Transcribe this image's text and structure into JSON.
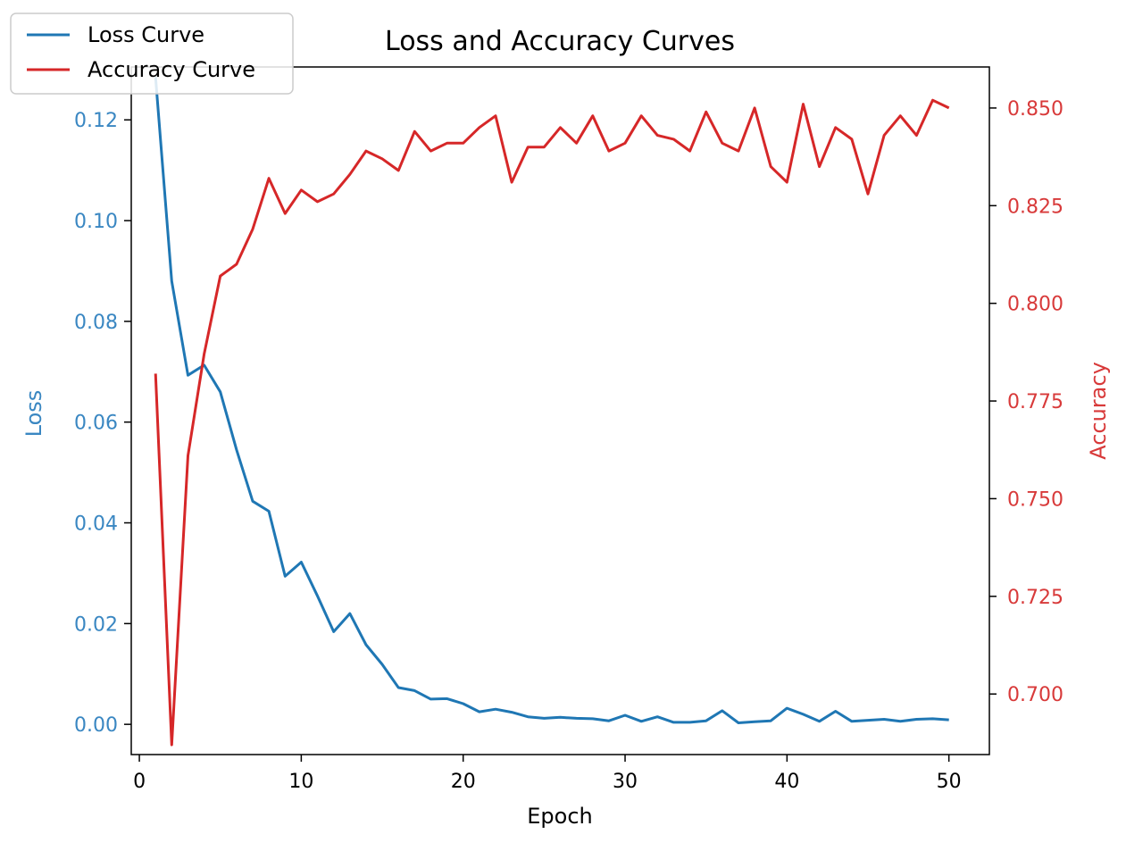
{
  "chart_data": {
    "type": "line",
    "title": "Loss and Accuracy Curves",
    "xlabel": "Epoch",
    "ylabel_left": "Loss",
    "ylabel_right": "Accuracy",
    "x": [
      1,
      2,
      3,
      4,
      5,
      6,
      7,
      8,
      9,
      10,
      11,
      12,
      13,
      14,
      15,
      16,
      17,
      18,
      19,
      20,
      21,
      22,
      23,
      24,
      25,
      26,
      27,
      28,
      29,
      30,
      31,
      32,
      33,
      34,
      35,
      36,
      37,
      38,
      39,
      40,
      41,
      42,
      43,
      44,
      45,
      46,
      47,
      48,
      49,
      50
    ],
    "xlim": [
      -0.5,
      52.5
    ],
    "xticks": [
      "0",
      "10",
      "20",
      "30",
      "40",
      "50"
    ],
    "left_ylim": [
      -0.006,
      0.1305
    ],
    "left_yticks": [
      "0.00",
      "0.02",
      "0.04",
      "0.06",
      "0.08",
      "0.10",
      "0.12"
    ],
    "right_ylim": [
      0.6845,
      0.8605
    ],
    "right_yticks": [
      "0.700",
      "0.725",
      "0.750",
      "0.775",
      "0.800",
      "0.825",
      "0.850"
    ],
    "grid": false,
    "legend_position": "upper-left-outside",
    "series": [
      {
        "name": "Loss Curve",
        "axis": "left",
        "color": "#1f77b4",
        "values": [
          0.1285,
          0.088,
          0.0693,
          0.0713,
          0.066,
          0.0545,
          0.0443,
          0.0423,
          0.0294,
          0.0322,
          0.0255,
          0.0184,
          0.022,
          0.0158,
          0.0119,
          0.0073,
          0.0067,
          0.005,
          0.0051,
          0.0041,
          0.0025,
          0.003,
          0.0024,
          0.0015,
          0.0012,
          0.0014,
          0.0012,
          0.0011,
          0.0007,
          0.0018,
          0.0006,
          0.0015,
          0.0004,
          0.0004,
          0.0007,
          0.0027,
          0.0003,
          0.0005,
          0.0007,
          0.0032,
          0.002,
          0.0006,
          0.0026,
          0.0006,
          0.0008,
          0.001,
          0.0006,
          0.001,
          0.0011,
          0.0009
        ]
      },
      {
        "name": "Accuracy Curve",
        "axis": "right",
        "color": "#d62728",
        "values": [
          0.782,
          0.687,
          0.761,
          0.787,
          0.807,
          0.81,
          0.819,
          0.832,
          0.823,
          0.829,
          0.826,
          0.828,
          0.833,
          0.839,
          0.837,
          0.834,
          0.844,
          0.839,
          0.841,
          0.841,
          0.845,
          0.848,
          0.831,
          0.84,
          0.84,
          0.845,
          0.841,
          0.848,
          0.839,
          0.841,
          0.848,
          0.843,
          0.842,
          0.839,
          0.849,
          0.841,
          0.839,
          0.85,
          0.835,
          0.831,
          0.851,
          0.835,
          0.845,
          0.842,
          0.828,
          0.843,
          0.848,
          0.843,
          0.852,
          0.85
        ]
      }
    ]
  }
}
